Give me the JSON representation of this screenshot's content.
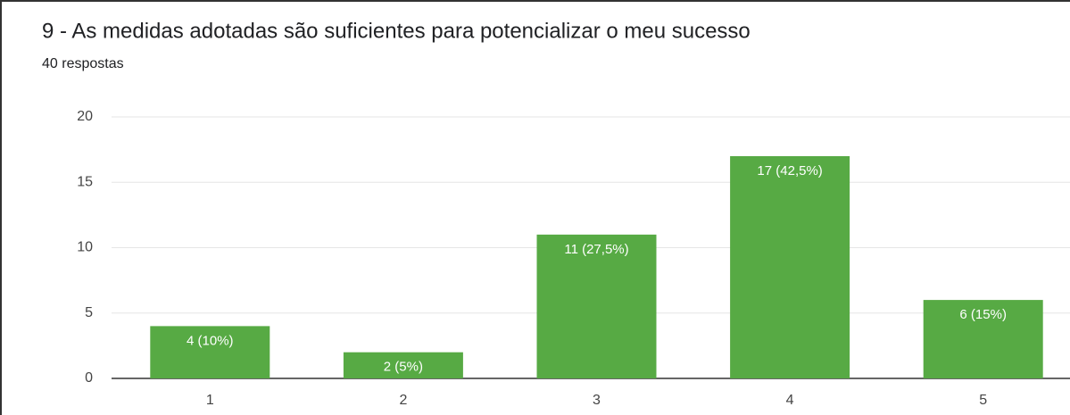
{
  "chart_data": {
    "type": "bar",
    "title": "9 - As medidas adotadas são suficientes para potencializar o meu sucesso",
    "subtitle": "40 respostas",
    "categories": [
      "1",
      "2",
      "3",
      "4",
      "5"
    ],
    "values": [
      4,
      2,
      11,
      17,
      6
    ],
    "value_labels": [
      "4 (10%)",
      "2 (5%)",
      "11 (27,5%)",
      "17 (42,5%)",
      "6 (15%)"
    ],
    "color": "#57aa44",
    "ylim": [
      0,
      20
    ],
    "yticks": [
      0,
      5,
      10,
      15,
      20
    ],
    "grid": true
  }
}
